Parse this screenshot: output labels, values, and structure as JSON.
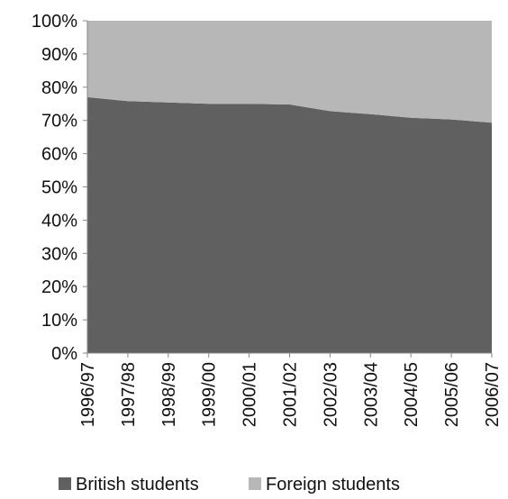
{
  "chart_data": {
    "type": "area",
    "stacking": "percent",
    "categories": [
      "1996/97",
      "1997/98",
      "1998/99",
      "1999/00",
      "2000/01",
      "2001/02",
      "2002/03",
      "2003/04",
      "2004/05",
      "2005/06",
      "2006/07"
    ],
    "series": [
      {
        "name": "British students",
        "color": "#606060",
        "values": [
          77,
          75.8,
          75.4,
          75,
          75,
          74.8,
          72.8,
          71.9,
          70.8,
          70.3,
          69.3
        ]
      },
      {
        "name": "Foreign students",
        "color": "#b7b7b7",
        "values": [
          23,
          24.2,
          24.6,
          25,
          25,
          25.2,
          27.2,
          28.1,
          29.2,
          29.7,
          30.7
        ]
      }
    ],
    "yticks": [
      "0%",
      "10%",
      "20%",
      "30%",
      "40%",
      "50%",
      "60%",
      "70%",
      "80%",
      "90%",
      "100%"
    ],
    "ylim": [
      0,
      100
    ],
    "grid": false,
    "legend_position": "bottom"
  }
}
